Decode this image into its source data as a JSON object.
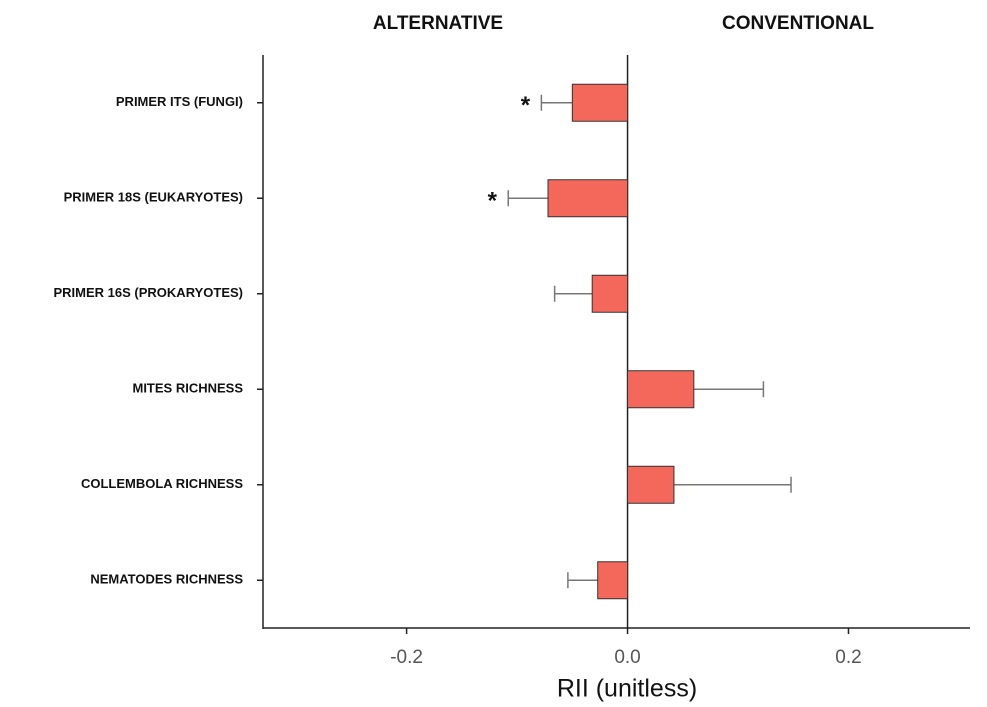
{
  "chart_data": {
    "type": "hbar_error",
    "left_header": "ALTERNATIVE",
    "right_header": "CONVENTIONAL",
    "xlabel": "RII (unitless)",
    "categories": [
      "PRIMER ITS (FUNGI)",
      "PRIMER 18S (EUKARYOTES)",
      "PRIMER 16S (PROKARYOTES)",
      "MITES RICHNESS",
      "COLLEMBOLA RICHNESS",
      "NEMATODES RICHNESS"
    ],
    "values": [
      -0.05,
      -0.072,
      -0.032,
      0.06,
      0.042,
      -0.027
    ],
    "errors": [
      0.028,
      0.036,
      0.034,
      0.063,
      0.106,
      0.027
    ],
    "significance": [
      "*",
      "*",
      null,
      null,
      null,
      null
    ],
    "color": "#f4685c",
    "xlim": [
      -0.33,
      0.31
    ],
    "xticks": [
      -0.2,
      {
        "value": 0,
        "label": "0.0"
      },
      0.2
    ]
  }
}
